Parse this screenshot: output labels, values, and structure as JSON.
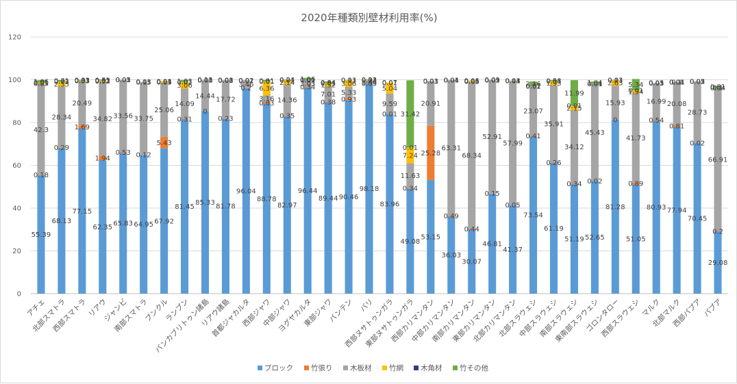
{
  "chart_data": {
    "type": "bar",
    "stacked": true,
    "title": "2020年種類別壁材利用率(%)",
    "xlabel": "",
    "ylabel": "",
    "ylim": [
      0,
      120
    ],
    "yticks": [
      0,
      20,
      40,
      60,
      80,
      100,
      120
    ],
    "grid": true,
    "legend_position": "bottom",
    "categories": [
      "アチェ",
      "北部スマトラ",
      "西部スマトラ",
      "リアウ",
      "ジャンビ",
      "南部スマトラ",
      "ブンクル",
      "ランプン",
      "バンカブリトゥン諸島",
      "リアウ諸島",
      "首都ジャカルタ",
      "西部ジャワ",
      "中部ジャワ",
      "ヨグヤカルタ",
      "東部ジャワ",
      "バンテン",
      "バリ",
      "西部ヌサトゥンガラ",
      "東部ヌサトゥンガラ",
      "西部カリマンタン",
      "中部カリマンタン",
      "南部カリマンタン",
      "東部カリマンタン",
      "北部カリマンタン",
      "北部スラウェシ",
      "中部スラウェシ",
      "南部スラウェシ",
      "東南部スラウェシ",
      "ゴロンタロー",
      "西部スラウェシ",
      "マルク",
      "北部マルク",
      "西部パプア",
      "パプア"
    ],
    "series": [
      {
        "name": "ブロック",
        "color": "#5b9bd5",
        "values": [
          55.39,
          68.13,
          77.15,
          62.35,
          65.83,
          64.95,
          67.92,
          81.45,
          85.33,
          81.78,
          96.04,
          88.78,
          82.97,
          96.44,
          89.44,
          90.46,
          98.18,
          83.96,
          49.08,
          53.15,
          36.03,
          30.07,
          46.81,
          41.37,
          73.54,
          61.19,
          51.19,
          52.65,
          81.28,
          51.05,
          80.93,
          77.94,
          70.45,
          29.08
        ]
      },
      {
        "name": "竹張り",
        "color": "#ed7d31",
        "values": [
          0.18,
          0.29,
          1.69,
          1.94,
          0.53,
          0.12,
          5.43,
          0.31,
          0,
          0.23,
          0.2,
          0.83,
          0.35,
          0.34,
          0.38,
          0.93,
          0.03,
          0.01,
          0.34,
          25.28,
          0.49,
          0.44,
          0.15,
          0.05,
          0.41,
          0.26,
          0.34,
          0.02,
          0,
          0.89,
          0.54,
          0.81,
          0.02,
          0.2
        ]
      },
      {
        "name": "木板材",
        "color": "#a5a5a5",
        "values": [
          42.3,
          28.34,
          20.49,
          34.82,
          33.56,
          33.75,
          25.06,
          14.09,
          14.44,
          17.72,
          3.46,
          3.16,
          14.36,
          3.03,
          7.01,
          5.33,
          1.46,
          9.59,
          11.63,
          20.91,
          63.31,
          68.34,
          52.91,
          57.99,
          23.07,
          35.91,
          34.12,
          45.43,
          15.93,
          41.73,
          16.99,
          20.08,
          28.73,
          66.91
        ]
      },
      {
        "name": "竹網",
        "color": "#ffc000",
        "values": [
          0.85,
          2.35,
          0.33,
          0.52,
          0.02,
          0.15,
          0.83,
          3.06,
          0.08,
          0.03,
          0.02,
          6.36,
          2.14,
          0.02,
          1.52,
          3.06,
          0.23,
          5.04,
          7.24,
          0.03,
          0.04,
          0.65,
          0.03,
          0.14,
          0.02,
          1.93,
          2.15,
          0.04,
          2.63,
          1.34,
          0.03,
          0.04,
          0.05,
          0.04
        ]
      },
      {
        "name": "木角材",
        "color": "#264478",
        "values": [
          0.01,
          0.03,
          0.01,
          0.01,
          0.01,
          0.01,
          0.01,
          0.01,
          0.01,
          0.01,
          0.01,
          0.01,
          0.01,
          0.01,
          0.01,
          0.01,
          0.01,
          0.01,
          0.01,
          0.01,
          0.01,
          0.01,
          0.01,
          0.01,
          0.01,
          0.01,
          0.01,
          0.01,
          0.01,
          0.01,
          0.01,
          0.01,
          0.01,
          0.1
        ]
      },
      {
        "name": "竹その他",
        "color": "#70ad47",
        "values": [
          1.06,
          0.71,
          0.33,
          0.53,
          0.05,
          0.03,
          0.04,
          1.03,
          0.13,
          0.08,
          0.02,
          0.81,
          0.24,
          1.06,
          0.84,
          0.13,
          0.33,
          0.07,
          31.42,
          0.03,
          0.04,
          0.06,
          0.09,
          0.03,
          2.16,
          0.58,
          11.99,
          1.04,
          0.13,
          5.34,
          0.05,
          0.1,
          0.02,
          0.81
        ]
      }
    ]
  }
}
